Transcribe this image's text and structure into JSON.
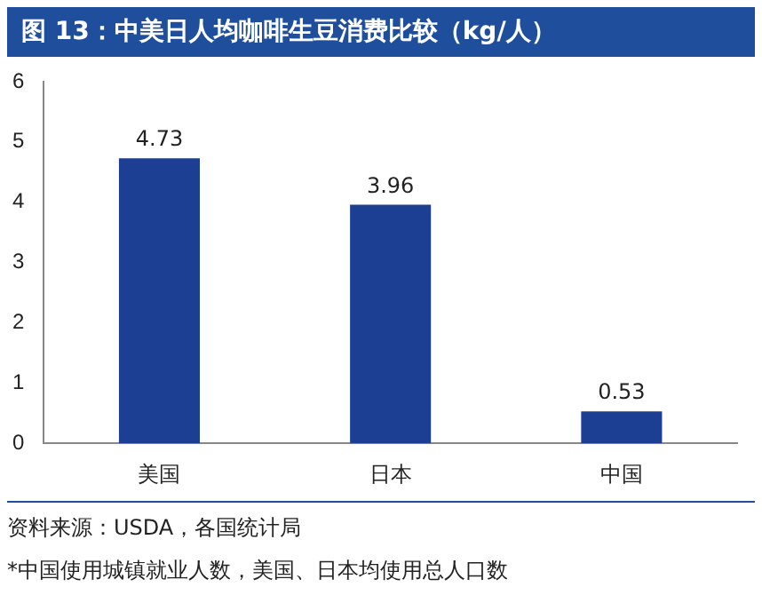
{
  "chart_data": {
    "type": "bar",
    "title": "图 13：中美日人均咖啡生豆消费比较（kg/人）",
    "categories": [
      "美国",
      "日本",
      "中国"
    ],
    "values": [
      4.73,
      3.96,
      0.53
    ],
    "color": "#1c3f94",
    "ylim": [
      0,
      6
    ],
    "yticks": [
      0,
      1,
      2,
      3,
      4,
      5,
      6
    ],
    "grid": false,
    "legend": false,
    "data_labels": true,
    "annotations": [
      "资料来源：USDA，各国统计局",
      "*中国使用城镇就业人数，美国、日本均使用总人口数"
    ]
  }
}
